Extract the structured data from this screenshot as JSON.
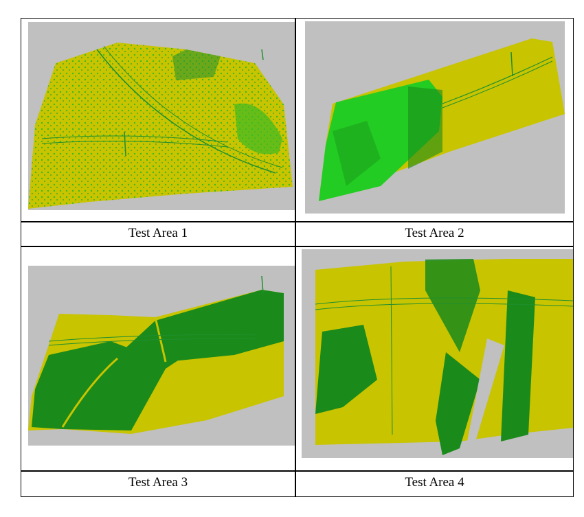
{
  "panels": [
    {
      "caption": "Test Area 1"
    },
    {
      "caption": "Test Area 2"
    },
    {
      "caption": "Test Area 3"
    },
    {
      "caption": "Test Area 4"
    }
  ],
  "colors": {
    "background_gray": "#c0c0c0",
    "ground_yellow": "#c8c400",
    "vegetation_light_green": "#22cc22",
    "vegetation_dark_green": "#1a8a1a",
    "powerline_green": "#1f8f2f"
  }
}
